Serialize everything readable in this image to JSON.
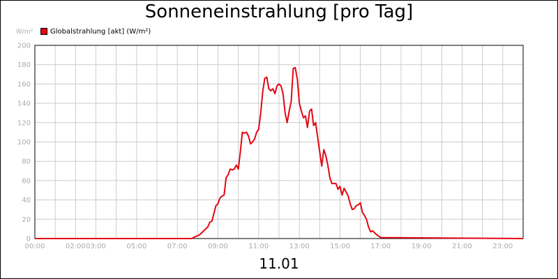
{
  "header": {
    "title": "Sonneneinstrahlung [pro Tag]",
    "date": "11.01"
  },
  "chart_data": {
    "type": "line",
    "title": "Sonneneinstrahlung [pro Tag]",
    "ylabel": "W/m²",
    "xlabel": "11.01",
    "ylim": [
      0,
      200
    ],
    "xlim": [
      0,
      24
    ],
    "grid": true,
    "legend_position": "top-left",
    "y_ticks": [
      0,
      20,
      40,
      60,
      80,
      100,
      120,
      140,
      160,
      180,
      200
    ],
    "x_ticks": [
      {
        "value": 0,
        "label": "00:00"
      },
      {
        "value": 2,
        "label": "02:00"
      },
      {
        "value": 3,
        "label": "03:00"
      },
      {
        "value": 5,
        "label": "05:00"
      },
      {
        "value": 7,
        "label": "07:00"
      },
      {
        "value": 9,
        "label": "09:00"
      },
      {
        "value": 11,
        "label": "11:00"
      },
      {
        "value": 13,
        "label": "13:00"
      },
      {
        "value": 15,
        "label": "15:00"
      },
      {
        "value": 17,
        "label": "17:00"
      },
      {
        "value": 19,
        "label": "19:00"
      },
      {
        "value": 21,
        "label": "21:00"
      },
      {
        "value": 23,
        "label": "23:00"
      }
    ],
    "series": [
      {
        "name": "Globalstrahlung [akt] (W/m²)",
        "color": "#e30613",
        "x": [
          0,
          7.7,
          7.9,
          8.1,
          8.3,
          8.5,
          8.6,
          8.7,
          8.8,
          8.9,
          9.0,
          9.1,
          9.2,
          9.3,
          9.4,
          9.5,
          9.6,
          9.7,
          9.8,
          9.9,
          10.0,
          10.1,
          10.2,
          10.3,
          10.4,
          10.5,
          10.6,
          10.7,
          10.8,
          10.9,
          11.0,
          11.1,
          11.2,
          11.3,
          11.4,
          11.5,
          11.6,
          11.7,
          11.8,
          11.9,
          12.0,
          12.1,
          12.2,
          12.3,
          12.4,
          12.5,
          12.6,
          12.7,
          12.8,
          12.9,
          13.0,
          13.1,
          13.2,
          13.3,
          13.4,
          13.5,
          13.6,
          13.7,
          13.8,
          13.9,
          14.0,
          14.1,
          14.2,
          14.3,
          14.4,
          14.5,
          14.6,
          14.7,
          14.8,
          14.9,
          15.0,
          15.1,
          15.2,
          15.3,
          15.4,
          15.5,
          15.6,
          15.7,
          15.8,
          15.9,
          16.0,
          16.1,
          16.2,
          16.3,
          16.4,
          16.5,
          16.6,
          16.8,
          17.0,
          24
        ],
        "values": [
          0,
          0,
          2,
          4,
          8,
          12,
          17,
          18,
          26,
          34,
          36,
          42,
          44,
          45,
          63,
          66,
          72,
          71,
          72,
          76,
          72,
          90,
          110,
          109,
          110,
          106,
          98,
          100,
          103,
          110,
          113,
          130,
          152,
          166,
          167,
          155,
          153,
          155,
          150,
          158,
          160,
          158,
          150,
          130,
          120,
          132,
          142,
          176,
          177,
          165,
          140,
          132,
          125,
          127,
          115,
          132,
          134,
          117,
          120,
          105,
          90,
          75,
          92,
          86,
          76,
          63,
          57,
          57,
          57,
          51,
          54,
          45,
          52,
          48,
          44,
          36,
          30,
          31,
          34,
          35,
          37,
          27,
          24,
          20,
          12,
          7,
          8,
          4,
          1,
          0
        ]
      }
    ]
  }
}
